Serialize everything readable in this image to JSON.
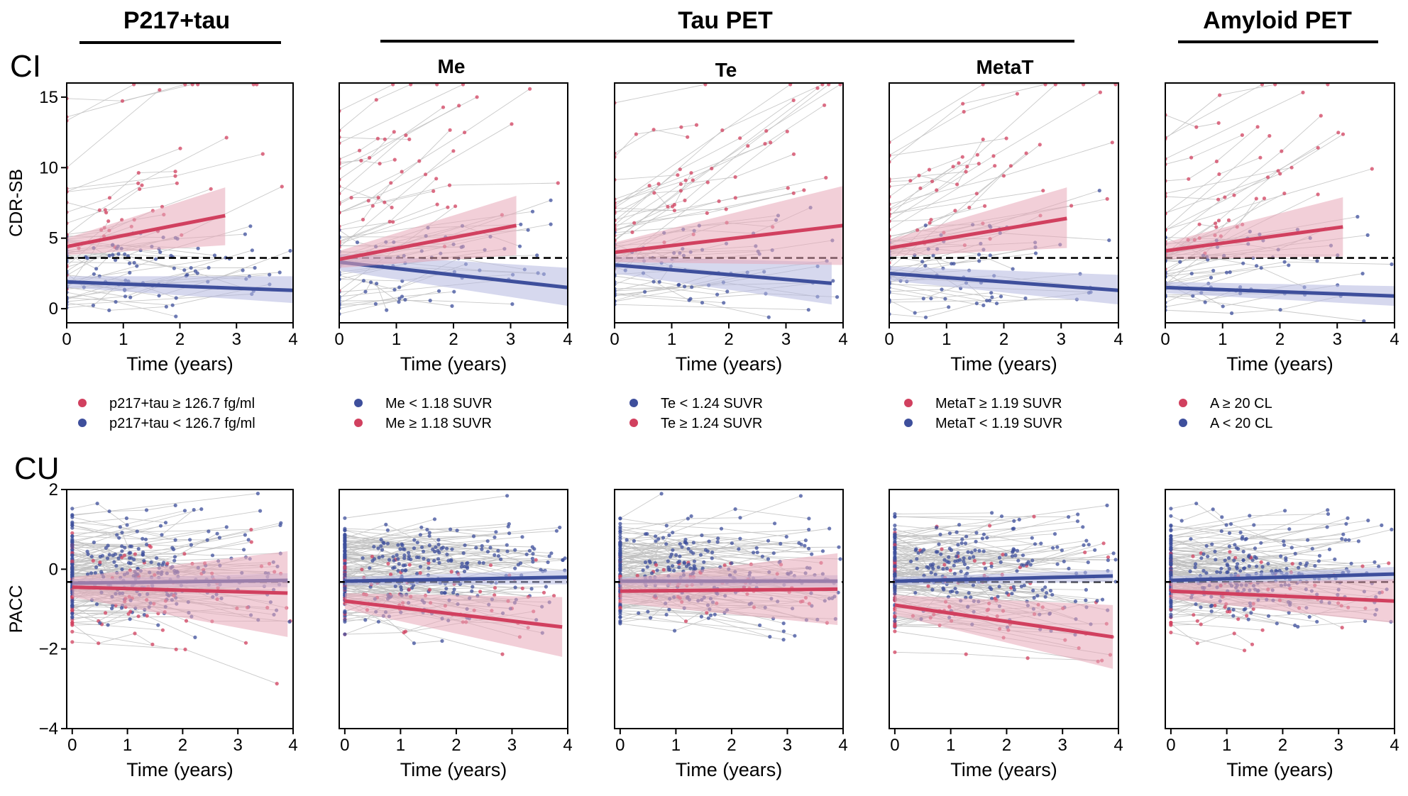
{
  "header": {
    "group_p217": "P217+tau",
    "group_taupet": "Tau PET",
    "group_amyloid": "Amyloid PET",
    "sub_me": "Me",
    "sub_te": "Te",
    "sub_metat": "MetaT"
  },
  "rows": {
    "ci_label": "CI",
    "cu_label": "CU"
  },
  "legends": [
    [
      {
        "label": "p217+tau ≥ 126.7 fg/ml",
        "color": "#d1405f"
      },
      {
        "label": "p217+tau < 126.7 fg/ml",
        "color": "#3e4f9c"
      }
    ],
    [
      {
        "label": "Me < 1.18 SUVR",
        "color": "#3e4f9c"
      },
      {
        "label": "Me ≥ 1.18 SUVR",
        "color": "#d1405f"
      }
    ],
    [
      {
        "label": "Te < 1.24 SUVR",
        "color": "#3e4f9c"
      },
      {
        "label": "Te ≥ 1.24 SUVR",
        "color": "#d1405f"
      }
    ],
    [
      {
        "label": "MetaT ≥ 1.19 SUVR",
        "color": "#d1405f"
      },
      {
        "label": "MetaT < 1.19 SUVR",
        "color": "#3e4f9c"
      }
    ],
    [
      {
        "label": "A ≥ 20 CL",
        "color": "#d1405f"
      },
      {
        "label": "A < 20 CL",
        "color": "#3e4f9c"
      }
    ]
  ],
  "colors": {
    "positive": "#d1405f",
    "negative": "#3e4f9c",
    "positive_band": "#e8a8b8",
    "negative_band": "#b4b8e0",
    "individual_lines": "#c0c0c0",
    "reference_line": "#000000"
  },
  "chart_data": [
    {
      "type": "scatter",
      "row": "CI",
      "panel": "P217+tau",
      "xlabel": "Time (years)",
      "ylabel": "CDR-SB",
      "xlim": [
        0,
        4
      ],
      "ylim": [
        -1,
        16
      ],
      "xticks": [
        0,
        1,
        2,
        3,
        4
      ],
      "yticks": [
        0,
        5,
        10,
        15
      ],
      "reference_line": 3.6,
      "series": [
        {
          "name": "p217+tau ≥ 126.7 fg/ml",
          "fit_x": [
            0,
            2.8
          ],
          "fit_y": [
            4.4,
            6.6
          ],
          "band_lower": [
            3.8,
            4.5
          ],
          "band_upper": [
            5.0,
            8.6
          ]
        },
        {
          "name": "p217+tau < 126.7 fg/ml",
          "fit_x": [
            0,
            4
          ],
          "fit_y": [
            1.9,
            1.3
          ],
          "band_lower": [
            1.5,
            0.4
          ],
          "band_upper": [
            2.3,
            2.3
          ]
        }
      ]
    },
    {
      "type": "scatter",
      "row": "CI",
      "panel": "Me",
      "xlabel": "Time (years)",
      "ylabel": "",
      "xlim": [
        0,
        4
      ],
      "ylim": [
        -1,
        16
      ],
      "xticks": [
        0,
        1,
        2,
        3,
        4
      ],
      "yticks": [],
      "reference_line": 3.6,
      "series": [
        {
          "name": "Me < 1.18 SUVR",
          "fit_x": [
            0,
            4
          ],
          "fit_y": [
            3.3,
            1.5
          ],
          "band_lower": [
            2.7,
            0.2
          ],
          "band_upper": [
            3.9,
            2.9
          ]
        },
        {
          "name": "Me ≥ 1.18 SUVR",
          "fit_x": [
            0,
            3.1
          ],
          "fit_y": [
            3.5,
            5.9
          ],
          "band_lower": [
            2.9,
            3.8
          ],
          "band_upper": [
            4.1,
            8.0
          ]
        }
      ]
    },
    {
      "type": "scatter",
      "row": "CI",
      "panel": "Te",
      "xlabel": "Time (years)",
      "ylabel": "",
      "xlim": [
        0,
        4
      ],
      "ylim": [
        -1,
        16
      ],
      "xticks": [
        0,
        1,
        2,
        3,
        4
      ],
      "yticks": [],
      "reference_line": 3.6,
      "series": [
        {
          "name": "Te < 1.24 SUVR",
          "fit_x": [
            0,
            3.8
          ],
          "fit_y": [
            3.1,
            1.8
          ],
          "band_lower": [
            2.5,
            0.3
          ],
          "band_upper": [
            3.7,
            3.3
          ]
        },
        {
          "name": "Te ≥ 1.24 SUVR",
          "fit_x": [
            0,
            4
          ],
          "fit_y": [
            4.0,
            5.9
          ],
          "band_lower": [
            3.3,
            3.1
          ],
          "band_upper": [
            4.7,
            8.7
          ]
        }
      ]
    },
    {
      "type": "scatter",
      "row": "CI",
      "panel": "MetaT",
      "xlabel": "Time (years)",
      "ylabel": "",
      "xlim": [
        0,
        4
      ],
      "ylim": [
        -1,
        16
      ],
      "xticks": [
        0,
        1,
        2,
        3,
        4
      ],
      "yticks": [],
      "reference_line": 3.6,
      "series": [
        {
          "name": "MetaT ≥ 1.19 SUVR",
          "fit_x": [
            0,
            3.1
          ],
          "fit_y": [
            4.3,
            6.4
          ],
          "band_lower": [
            3.7,
            4.3
          ],
          "band_upper": [
            4.9,
            8.6
          ]
        },
        {
          "name": "MetaT < 1.19 SUVR",
          "fit_x": [
            0,
            4
          ],
          "fit_y": [
            2.5,
            1.3
          ],
          "band_lower": [
            2.0,
            0.3
          ],
          "band_upper": [
            3.0,
            2.4
          ]
        }
      ]
    },
    {
      "type": "scatter",
      "row": "CI",
      "panel": "Amyloid PET",
      "xlabel": "Time (years)",
      "ylabel": "",
      "xlim": [
        0,
        4
      ],
      "ylim": [
        -1,
        16
      ],
      "xticks": [
        0,
        1,
        2,
        3,
        4
      ],
      "yticks": [],
      "reference_line": 3.6,
      "series": [
        {
          "name": "A ≥ 20 CL",
          "fit_x": [
            0,
            3.1
          ],
          "fit_y": [
            4.1,
            5.8
          ],
          "band_lower": [
            3.5,
            3.7
          ],
          "band_upper": [
            4.7,
            7.9
          ]
        },
        {
          "name": "A < 20 CL",
          "fit_x": [
            0,
            4
          ],
          "fit_y": [
            1.5,
            0.9
          ],
          "band_lower": [
            1.1,
            0.2
          ],
          "band_upper": [
            1.9,
            1.6
          ]
        }
      ]
    },
    {
      "type": "scatter",
      "row": "CU",
      "panel": "P217+tau",
      "xlabel": "Time (years)",
      "ylabel": "PACC",
      "xlim": [
        -0.1,
        4
      ],
      "ylim": [
        -4,
        2
      ],
      "xticks": [
        0,
        1,
        2,
        3,
        4
      ],
      "yticks": [
        -4,
        -2,
        0,
        2
      ],
      "reference_line": -0.32,
      "series": [
        {
          "name": "p217+tau < 126.7 fg/ml",
          "fit_x": [
            0,
            3.9
          ],
          "fit_y": [
            -0.35,
            -0.28
          ],
          "band_lower": [
            -0.45,
            -0.45
          ],
          "band_upper": [
            -0.25,
            -0.1
          ]
        },
        {
          "name": "p217+tau ≥ 126.7 fg/ml",
          "fit_x": [
            0,
            3.9
          ],
          "fit_y": [
            -0.45,
            -0.6
          ],
          "band_lower": [
            -0.7,
            -1.7
          ],
          "band_upper": [
            -0.2,
            0.45
          ]
        }
      ]
    },
    {
      "type": "scatter",
      "row": "CU",
      "panel": "Me",
      "xlabel": "Time (years)",
      "ylabel": "",
      "xlim": [
        -0.1,
        4
      ],
      "ylim": [
        -4,
        2
      ],
      "xticks": [
        0,
        1,
        2,
        3,
        4
      ],
      "yticks": [],
      "reference_line": -0.32,
      "series": [
        {
          "name": "Me < 1.18 SUVR",
          "fit_x": [
            0,
            4
          ],
          "fit_y": [
            -0.3,
            -0.2
          ],
          "band_lower": [
            -0.4,
            -0.38
          ],
          "band_upper": [
            -0.2,
            -0.02
          ]
        },
        {
          "name": "Me ≥ 1.18 SUVR",
          "fit_x": [
            0,
            3.9
          ],
          "fit_y": [
            -0.8,
            -1.45
          ],
          "band_lower": [
            -1.0,
            -2.2
          ],
          "band_upper": [
            -0.6,
            -0.7
          ]
        }
      ]
    },
    {
      "type": "scatter",
      "row": "CU",
      "panel": "Te",
      "xlabel": "Time (years)",
      "ylabel": "",
      "xlim": [
        -0.1,
        4
      ],
      "ylim": [
        -4,
        2
      ],
      "xticks": [
        0,
        1,
        2,
        3,
        4
      ],
      "yticks": [],
      "reference_line": -0.32,
      "series": [
        {
          "name": "Te < 1.24 SUVR",
          "fit_x": [
            0,
            3.9
          ],
          "fit_y": [
            -0.3,
            -0.3
          ],
          "band_lower": [
            -0.4,
            -0.45
          ],
          "band_upper": [
            -0.2,
            -0.15
          ]
        },
        {
          "name": "Te ≥ 1.24 SUVR",
          "fit_x": [
            0,
            3.9
          ],
          "fit_y": [
            -0.55,
            -0.5
          ],
          "band_lower": [
            -0.85,
            -1.4
          ],
          "band_upper": [
            -0.25,
            0.4
          ]
        }
      ]
    },
    {
      "type": "scatter",
      "row": "CU",
      "panel": "MetaT",
      "xlabel": "Time (years)",
      "ylabel": "",
      "xlim": [
        -0.1,
        4
      ],
      "ylim": [
        -4,
        2
      ],
      "xticks": [
        0,
        1,
        2,
        3,
        4
      ],
      "yticks": [],
      "reference_line": -0.32,
      "series": [
        {
          "name": "MetaT < 1.19 SUVR",
          "fit_x": [
            0,
            3.9
          ],
          "fit_y": [
            -0.3,
            -0.17
          ],
          "band_lower": [
            -0.4,
            -0.32
          ],
          "band_upper": [
            -0.2,
            -0.02
          ]
        },
        {
          "name": "MetaT ≥ 1.19 SUVR",
          "fit_x": [
            0,
            3.9
          ],
          "fit_y": [
            -0.9,
            -1.7
          ],
          "band_lower": [
            -1.15,
            -2.5
          ],
          "band_upper": [
            -0.65,
            -0.9
          ]
        }
      ]
    },
    {
      "type": "scatter",
      "row": "CU",
      "panel": "Amyloid PET",
      "xlabel": "Time (years)",
      "ylabel": "",
      "xlim": [
        -0.1,
        4
      ],
      "ylim": [
        -4,
        2
      ],
      "xticks": [
        0,
        1,
        2,
        3,
        4
      ],
      "yticks": [],
      "reference_line": -0.32,
      "series": [
        {
          "name": "A < 20 CL",
          "fit_x": [
            0,
            4
          ],
          "fit_y": [
            -0.28,
            -0.12
          ],
          "band_lower": [
            -0.38,
            -0.3
          ],
          "band_upper": [
            -0.18,
            0.06
          ]
        },
        {
          "name": "A ≥ 20 CL",
          "fit_x": [
            0,
            4
          ],
          "fit_y": [
            -0.55,
            -0.8
          ],
          "band_lower": [
            -0.75,
            -1.35
          ],
          "band_upper": [
            -0.35,
            -0.25
          ]
        }
      ]
    }
  ]
}
